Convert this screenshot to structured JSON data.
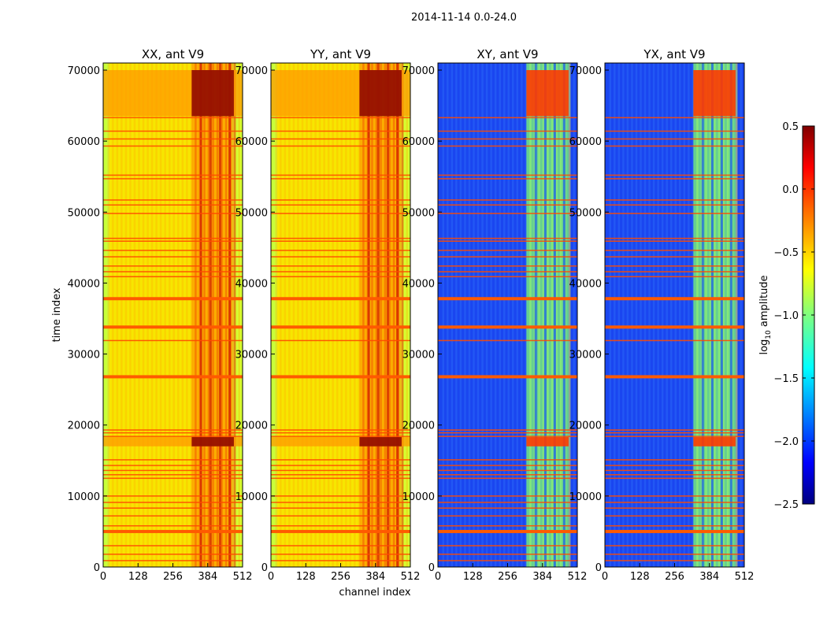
{
  "chart_data": {
    "type": "heatmap",
    "suptitle": "2014-11-14 0.0-24.0",
    "xlabel": "channel index",
    "ylabel": "time index",
    "xlim": [
      0,
      512
    ],
    "ylim": [
      0,
      71000
    ],
    "xticks": [
      0,
      128,
      256,
      384,
      512
    ],
    "yticks": [
      0,
      10000,
      20000,
      30000,
      40000,
      50000,
      60000,
      70000
    ],
    "panels": [
      {
        "title": "XX, ant V9",
        "kind": "auto"
      },
      {
        "title": "YY, ant V9",
        "kind": "auto"
      },
      {
        "title": "XY, ant V9",
        "kind": "cross"
      },
      {
        "title": "YX, ant V9",
        "kind": "cross"
      }
    ],
    "colorbar": {
      "label": "log10 amplitude",
      "label_main": "log",
      "label_sub": "10",
      "label_rest": " amplitude",
      "range": [
        -2.5,
        0.5
      ],
      "ticks": [
        0.5,
        0.0,
        -0.5,
        -1.0,
        -1.5,
        -2.0,
        -2.5
      ],
      "tick_labels": [
        "0.5",
        "0.0",
        "−0.5",
        "−1.0",
        "−1.5",
        "−2.0",
        "−2.5"
      ],
      "colormap": "jet"
    },
    "features": {
      "high_amplitude_channel_range": [
        325,
        480
      ],
      "bright_time_bands": [
        [
          63500,
          70000
        ],
        [
          17000,
          18300
        ]
      ],
      "flag_lines_time": [
        900,
        1800,
        3000,
        5000,
        5800,
        7200,
        8300,
        9100,
        10000,
        12500,
        13000,
        13600,
        14300,
        15100,
        18400,
        18900,
        19300,
        26800,
        31900,
        33800,
        37800,
        40900,
        41600,
        42400,
        43700,
        44600,
        45900,
        46300,
        49800,
        51000,
        51700,
        54700,
        55200,
        59300,
        60300,
        61400,
        63300
      ],
      "thick_flag_lines_time": [
        5000,
        26800,
        33800,
        37800
      ]
    }
  }
}
